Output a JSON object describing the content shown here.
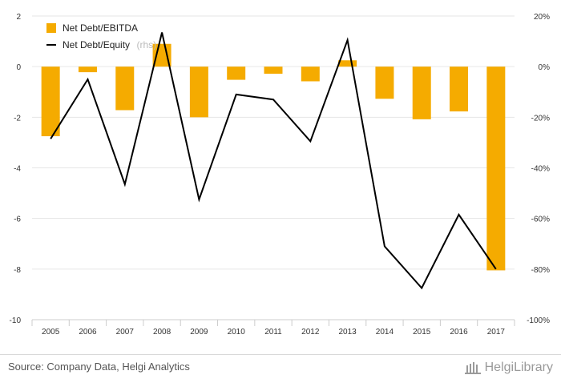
{
  "chart_data": {
    "type": "bar+line",
    "categories": [
      "2005",
      "2006",
      "2007",
      "2008",
      "2009",
      "2010",
      "2011",
      "2012",
      "2013",
      "2014",
      "2015",
      "2016",
      "2017"
    ],
    "series": [
      {
        "name": "Net Debt/EBITDA",
        "type": "bar",
        "axis": "left",
        "color": "#f5ab00",
        "values": [
          -2.75,
          -0.22,
          -1.72,
          0.9,
          -2.0,
          -0.52,
          -0.28,
          -0.58,
          0.25,
          -1.27,
          -2.08,
          -1.77,
          -8.05
        ]
      },
      {
        "name": "Net Debt/Equity",
        "type": "line",
        "axis": "right",
        "color": "#000000",
        "values": [
          -28.5,
          -5.0,
          -46.5,
          13.5,
          -52.5,
          -11.0,
          -13.0,
          -29.5,
          10.5,
          -71.0,
          -87.5,
          -58.5,
          -80.0
        ]
      }
    ],
    "left_axis": {
      "min": -10,
      "max": 2,
      "ticks": [
        "2",
        "0",
        "-2",
        "-4",
        "-6",
        "-8",
        "-10"
      ]
    },
    "right_axis": {
      "min": -100,
      "max": 20,
      "ticks": [
        "20%",
        "0%",
        "-20%",
        "-40%",
        "-60%",
        "-80%",
        "-100%"
      ]
    },
    "legend": {
      "placement": "top-left",
      "items": [
        "Net Debt/EBITDA",
        "Net Debt/Equity"
      ],
      "rhs_note": "(rhs)"
    },
    "grid": true
  },
  "footer": {
    "source": "Source: Company Data, Helgi Analytics",
    "logo_text": "HelgiLibrary"
  }
}
